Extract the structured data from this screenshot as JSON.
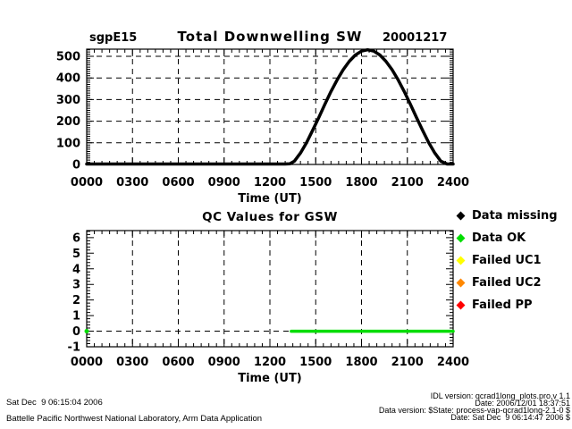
{
  "chart_data": [
    {
      "type": "line",
      "title": "Total Downwelling SW",
      "left_label": "sgpE15",
      "right_label": "20001217",
      "xlabel": "Time (UT)",
      "ylabel": "",
      "xlim": [
        0,
        24
      ],
      "ylim": [
        0,
        533
      ],
      "xticks": [
        "0000",
        "0300",
        "0600",
        "0900",
        "1200",
        "1500",
        "1800",
        "2100",
        "2400"
      ],
      "yticks": [
        0,
        100,
        200,
        300,
        400,
        500
      ],
      "grid": "dashed",
      "axis_color": "#000000",
      "series": [
        {
          "name": "total-downwelling-sw",
          "color": "#000000",
          "x": [
            0,
            13.0,
            13.3,
            13.6,
            14.0,
            14.4,
            14.8,
            15.2,
            15.6,
            16.0,
            16.4,
            16.8,
            17.2,
            17.6,
            18.0,
            18.4,
            18.8,
            19.2,
            19.6,
            20.0,
            20.4,
            20.8,
            21.2,
            21.6,
            22.0,
            22.4,
            22.8,
            23.2,
            23.6,
            24.0
          ],
          "y": [
            2,
            2,
            3,
            15,
            53,
            101,
            158,
            217,
            278,
            337,
            391,
            438,
            477,
            506,
            524,
            530,
            524,
            506,
            477,
            438,
            391,
            337,
            278,
            217,
            158,
            101,
            53,
            15,
            2,
            2
          ]
        }
      ]
    },
    {
      "type": "line",
      "title": "QC Values for GSW",
      "xlabel": "Time (UT)",
      "ylabel": "",
      "xlim": [
        0,
        24
      ],
      "ylim": [
        -1,
        6.45
      ],
      "xticks": [
        "0000",
        "0300",
        "0600",
        "0900",
        "1200",
        "1500",
        "1800",
        "2100",
        "2400"
      ],
      "yticks": [
        -1,
        0,
        1,
        2,
        3,
        4,
        5,
        6
      ],
      "grid": "dashed-vertical",
      "zero_gridline": 0,
      "axis_color": "#000000",
      "series": [
        {
          "name": "qc-data-ok-line",
          "color": "#00dd00",
          "x": [
            13.4,
            24
          ],
          "y": [
            0,
            0
          ]
        },
        {
          "name": "qc-data-ok-point",
          "color": "#00dd00",
          "marker": "dot",
          "x": [
            0
          ],
          "y": [
            0
          ]
        }
      ]
    }
  ],
  "legend": {
    "items": [
      {
        "label": "Data missing",
        "color": "#000000"
      },
      {
        "label": "Data OK",
        "color": "#00dd00"
      },
      {
        "label": "Failed UC1",
        "color": "#ffff00"
      },
      {
        "label": "Failed UC2",
        "color": "#ff8800"
      },
      {
        "label": "Failed PP",
        "color": "#ff0000"
      }
    ]
  },
  "footer": {
    "left_lines": [
      "Sat Dec  9 06:15:04 2006",
      "Battelle Pacific Northwest National Laboratory, Arm Data Application"
    ],
    "right_lines": [
      "IDL version: qcrad1long_plots.pro,v 1.1",
      "Date: 2006/12/01 18:37:51",
      "Data version: $State: process-vap-qcrad1long-2.1-0 $",
      "Date: Sat Dec  9 06:14:47 2006 $"
    ]
  }
}
